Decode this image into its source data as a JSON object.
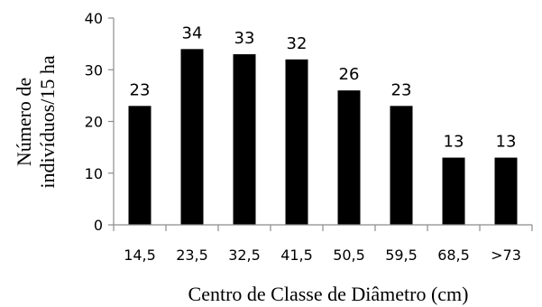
{
  "chart_data": {
    "type": "bar",
    "categories": [
      "14,5",
      "23,5",
      "32,5",
      "41,5",
      "50,5",
      "59,5",
      "68,5",
      ">73"
    ],
    "values": [
      23,
      34,
      33,
      32,
      26,
      23,
      13,
      13
    ],
    "data_labels": [
      "23",
      "34",
      "33",
      "32",
      "26",
      "23",
      "13",
      "13"
    ],
    "yticks": [
      0,
      10,
      20,
      30,
      40
    ],
    "ytick_labels": [
      "0",
      "10",
      "20",
      "30",
      "40"
    ],
    "ylim": [
      0,
      40
    ],
    "ylabel_lines": [
      "Número de",
      "indivíduos/15 ha"
    ],
    "xlabel": "Centro de Classe de Diâmetro (cm)",
    "bar_color": "#000000",
    "grid": false,
    "legend": "none"
  }
}
